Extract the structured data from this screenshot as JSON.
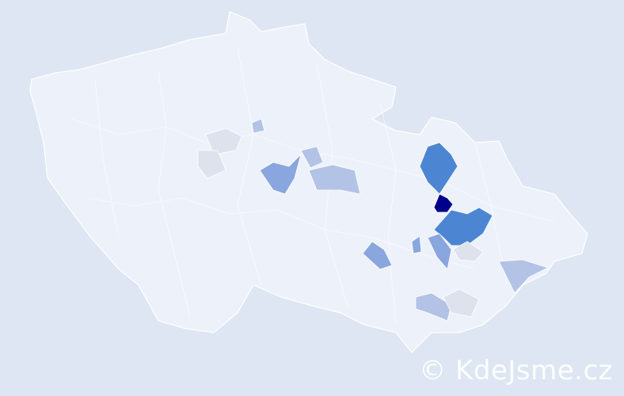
{
  "watermark": "© KdeJsme.cz",
  "colors": {
    "background": "#dde6f2",
    "base": "#edf1f9",
    "highest": "#00008b",
    "high": "#4c86d3",
    "medium": "#8aa6de",
    "low": "#b3c3e6",
    "lowest": "#dde2ec"
  },
  "highlighted_districts": [
    {
      "level": "highest"
    },
    {
      "level": "high"
    },
    {
      "level": "high"
    },
    {
      "level": "medium"
    },
    {
      "level": "medium"
    },
    {
      "level": "medium"
    },
    {
      "level": "medium"
    },
    {
      "level": "low"
    },
    {
      "level": "low"
    },
    {
      "level": "low"
    },
    {
      "level": "low"
    },
    {
      "level": "low"
    },
    {
      "level": "lowest"
    },
    {
      "level": "lowest"
    },
    {
      "level": "lowest"
    },
    {
      "level": "lowest"
    }
  ]
}
